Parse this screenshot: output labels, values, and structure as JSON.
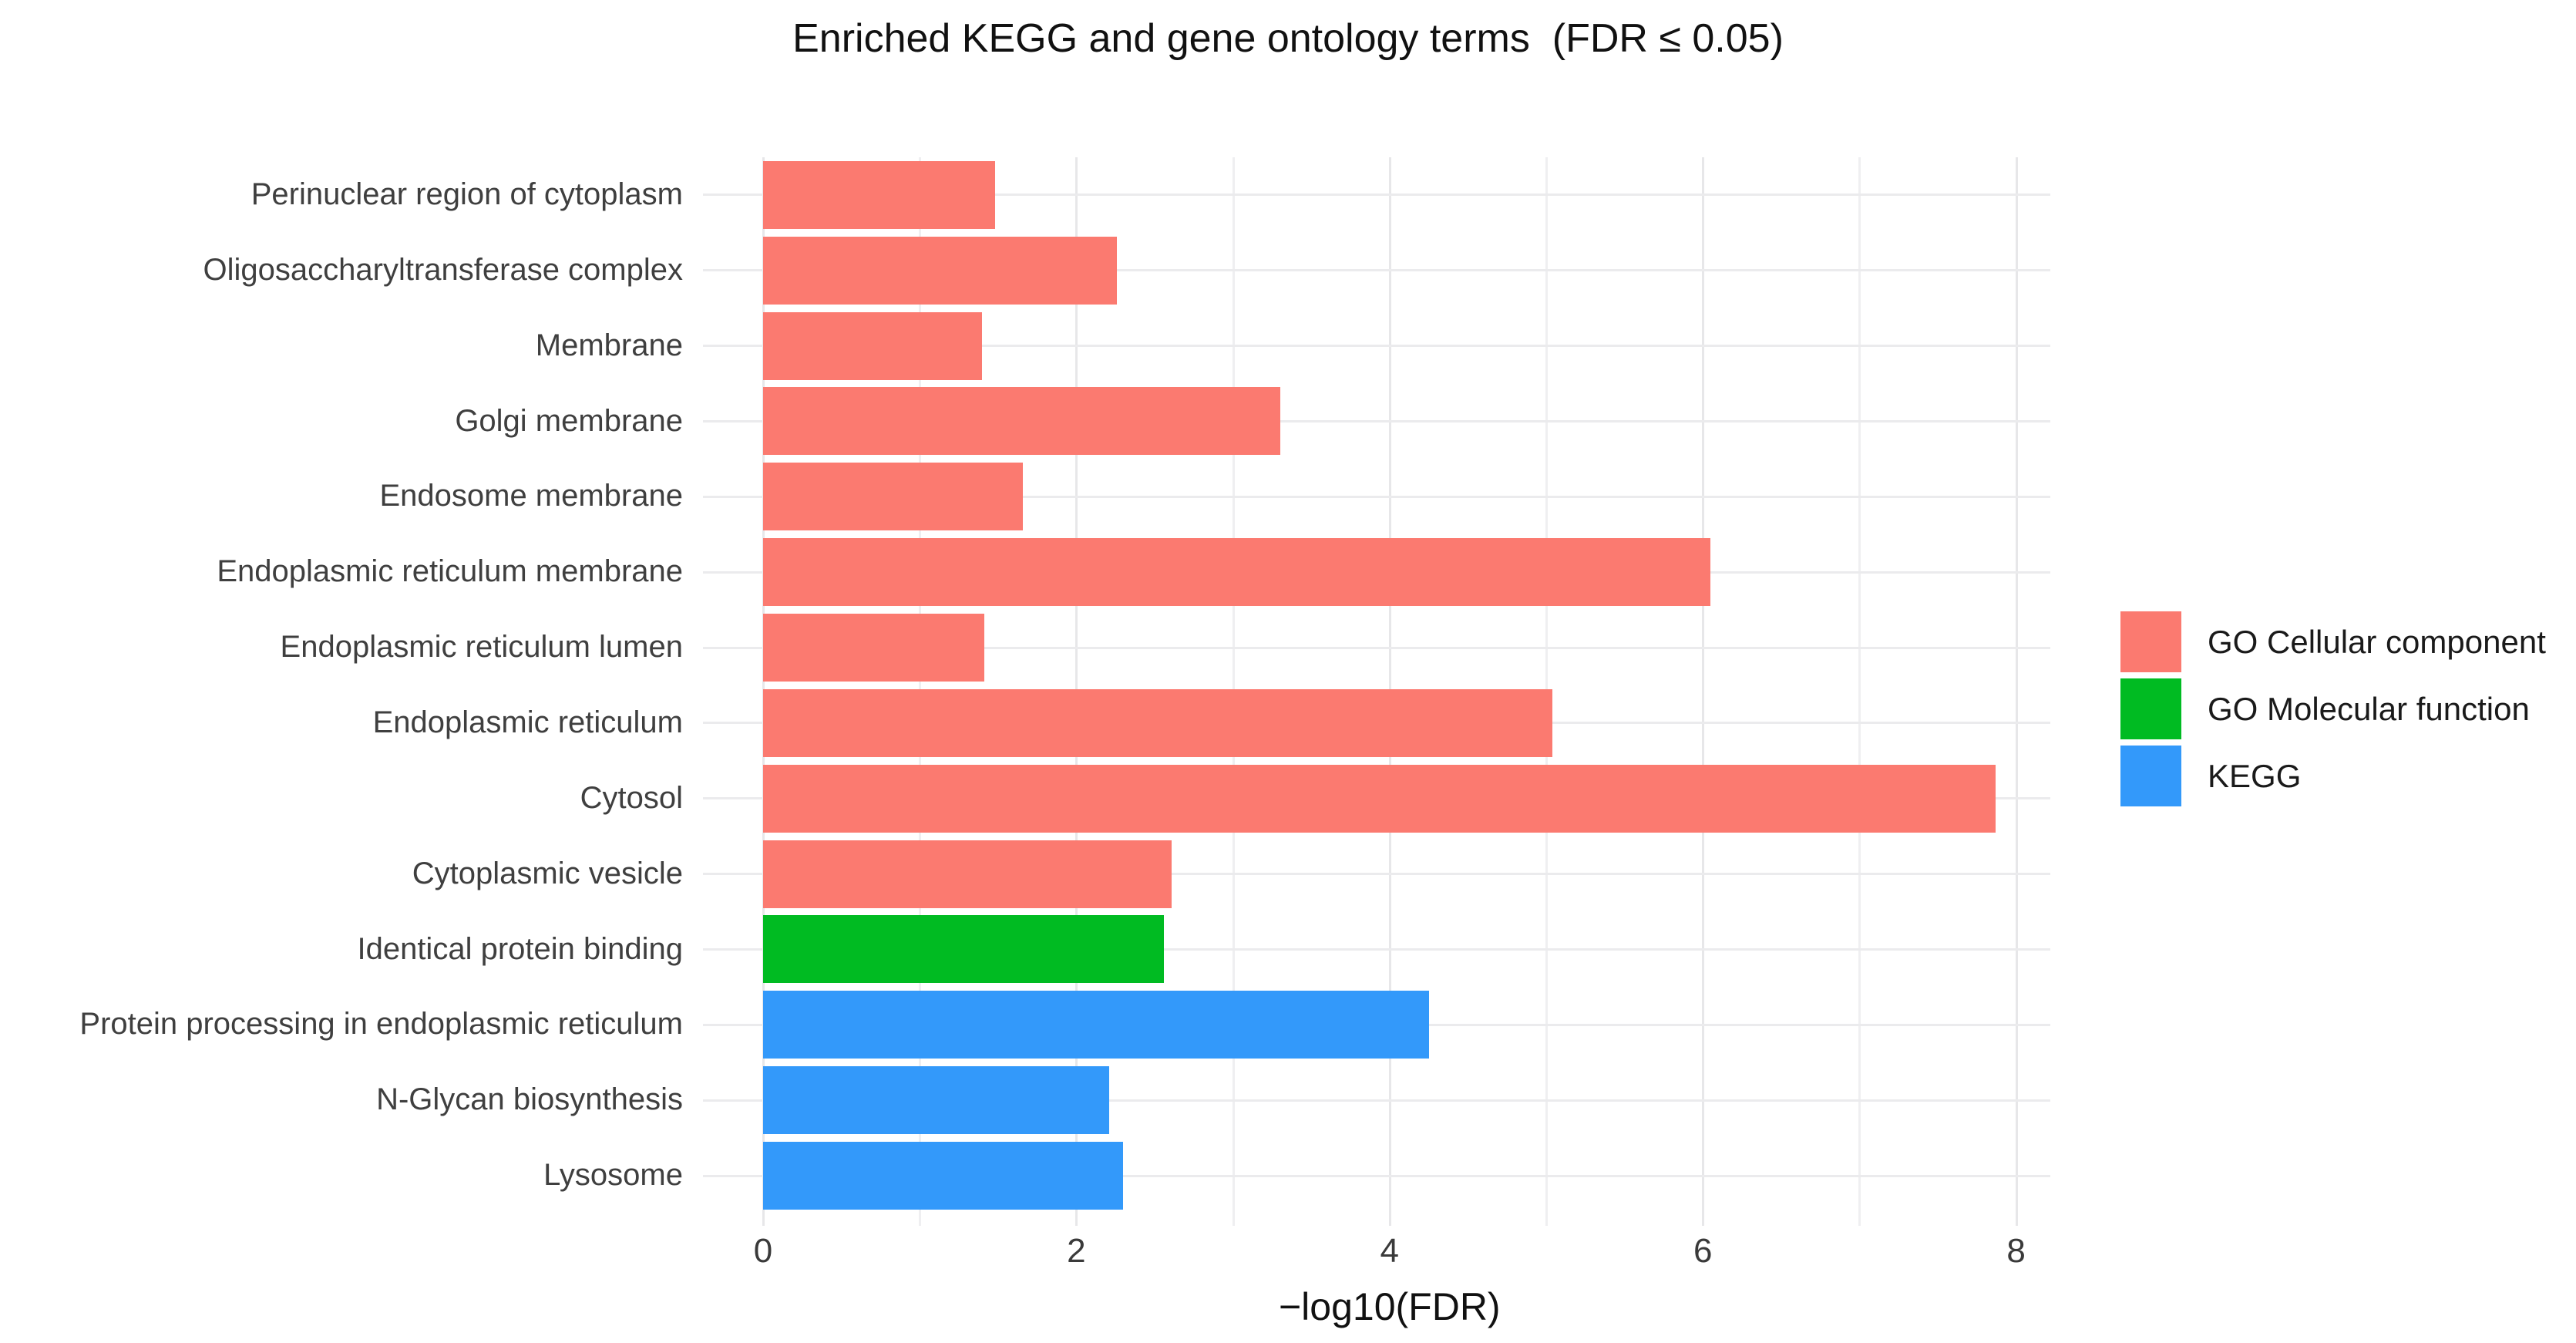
{
  "title": "Enriched KEGG and gene ontology terms  (FDR ≤ 0.05)",
  "chart_data": {
    "type": "bar",
    "orientation": "horizontal",
    "title": "Enriched KEGG and gene ontology terms  (FDR ≤ 0.05)",
    "xlabel": "−log10(FDR)",
    "ylabel": "",
    "xlim": [
      0,
      8.2
    ],
    "x_major_ticks": [
      0,
      2,
      4,
      6,
      8
    ],
    "x_minor_gridlines": [
      1,
      3,
      5,
      7
    ],
    "grid": "light gray vertical gridlines at every integer; light gray horizontal gridline at each category",
    "legend_position": "right-center",
    "background": "#ffffff",
    "categories": [
      "Perinuclear region of cytoplasm",
      "Oligosaccharyltransferase complex",
      "Membrane",
      "Golgi membrane",
      "Endosome membrane",
      "Endoplasmic reticulum membrane",
      "Endoplasmic reticulum lumen",
      "Endoplasmic reticulum",
      "Cytosol",
      "Cytoplasmic vesicle",
      "Identical protein binding",
      "Protein processing in endoplasmic reticulum",
      "N-Glycan biosynthesis",
      "Lysosome"
    ],
    "values": [
      1.48,
      2.26,
      1.4,
      3.3,
      1.66,
      6.05,
      1.41,
      5.04,
      7.87,
      2.61,
      2.56,
      4.25,
      2.21,
      2.3
    ],
    "group_index": [
      0,
      0,
      0,
      0,
      0,
      0,
      0,
      0,
      0,
      0,
      1,
      2,
      2,
      2
    ],
    "groups": [
      {
        "name": "GO Cellular component",
        "color": "#fb7a70"
      },
      {
        "name": "GO Molecular function",
        "color": "#00bb22"
      },
      {
        "name": "KEGG",
        "color": "#3399fa"
      }
    ]
  },
  "legend": {
    "items": [
      {
        "label": "GO Cellular component",
        "color": "#fb7a70"
      },
      {
        "label": "GO Molecular function",
        "color": "#00bb22"
      },
      {
        "label": "KEGG",
        "color": "#3399fa"
      }
    ]
  },
  "colors": {
    "grid_major": "#e7e7e9",
    "grid_minor": "#efeff1",
    "axis_text": "#3f3f3f",
    "title_text": "#111111"
  }
}
